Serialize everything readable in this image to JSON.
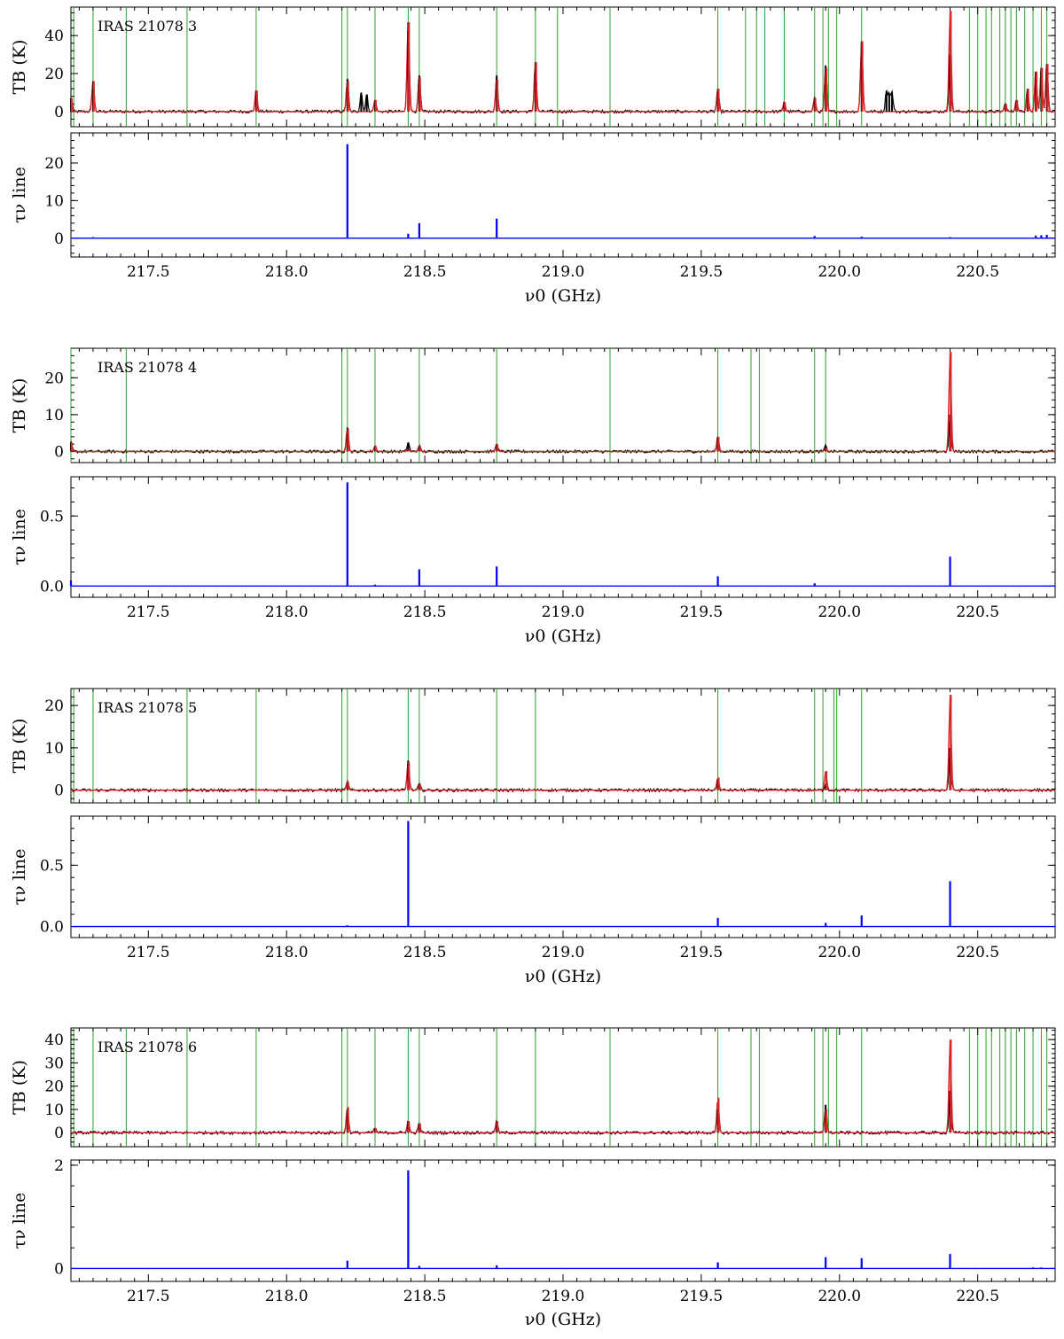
{
  "chart_data": [
    {
      "type": "line",
      "source_label": "IRAS 21078 3",
      "xlabel": "ν0 (GHz)",
      "xlim": [
        217.22,
        220.78
      ],
      "x_ticks": [
        217.5,
        218.0,
        218.5,
        219.0,
        219.5,
        220.0,
        220.5
      ],
      "x_tick_labels": [
        "217.5",
        "218.0",
        "218.5",
        "219.0",
        "219.5",
        "220.0",
        "220.5"
      ],
      "top": {
        "ylabel": "TB (K)",
        "ylim": [
          -8,
          55
        ],
        "y_ticks": [
          0,
          20,
          40
        ],
        "y_tick_labels": [
          "0",
          "20",
          "40"
        ],
        "line_markers_ghz": [
          217.23,
          217.3,
          217.42,
          217.64,
          217.89,
          218.2,
          218.22,
          218.32,
          218.44,
          218.48,
          218.76,
          218.9,
          218.98,
          219.17,
          219.56,
          219.66,
          219.7,
          219.73,
          219.8,
          219.91,
          219.94,
          219.96,
          219.99,
          220.08,
          220.4,
          220.47,
          220.5,
          220.53,
          220.55,
          220.58,
          220.6,
          220.62,
          220.64,
          220.67,
          220.7,
          220.73,
          220.75
        ],
        "peaks": [
          {
            "x": 217.22,
            "data": 7,
            "model": 7
          },
          {
            "x": 217.3,
            "data": 16,
            "model": 16
          },
          {
            "x": 217.89,
            "data": 11,
            "model": 11
          },
          {
            "x": 218.22,
            "data": 17,
            "model": 16
          },
          {
            "x": 218.27,
            "data": 10,
            "model": 0
          },
          {
            "x": 218.29,
            "data": 9,
            "model": 0
          },
          {
            "x": 218.32,
            "data": 6,
            "model": 6
          },
          {
            "x": 218.44,
            "data": 47,
            "model": 47
          },
          {
            "x": 218.48,
            "data": 19,
            "model": 18
          },
          {
            "x": 218.76,
            "data": 19,
            "model": 17
          },
          {
            "x": 218.9,
            "data": 26,
            "model": 26
          },
          {
            "x": 219.56,
            "data": 12,
            "model": 12
          },
          {
            "x": 219.8,
            "data": 5,
            "model": 5
          },
          {
            "x": 219.91,
            "data": 7,
            "model": 7
          },
          {
            "x": 219.95,
            "data": 24,
            "model": 23
          },
          {
            "x": 220.08,
            "data": 37,
            "model": 37
          },
          {
            "x": 220.17,
            "data": 11,
            "model": 0
          },
          {
            "x": 220.18,
            "data": 9,
            "model": 0
          },
          {
            "x": 220.19,
            "data": 10,
            "model": 0
          },
          {
            "x": 220.4,
            "data": 30,
            "model": 53
          },
          {
            "x": 220.6,
            "data": 4,
            "model": 4
          },
          {
            "x": 220.64,
            "data": 6,
            "model": 6
          },
          {
            "x": 220.68,
            "data": 12,
            "model": 12
          },
          {
            "x": 220.71,
            "data": 21,
            "model": 21
          },
          {
            "x": 220.73,
            "data": 23,
            "model": 23
          },
          {
            "x": 220.75,
            "data": 25,
            "model": 25
          }
        ]
      },
      "bottom": {
        "ylabel": "τν line",
        "ylim": [
          -5,
          28
        ],
        "y_ticks": [
          0,
          10,
          20
        ],
        "y_tick_labels": [
          "0",
          "10",
          "20"
        ],
        "peaks": [
          {
            "x": 217.3,
            "value": 0.3
          },
          {
            "x": 218.22,
            "value": 25
          },
          {
            "x": 218.44,
            "value": 1.2
          },
          {
            "x": 218.48,
            "value": 4
          },
          {
            "x": 218.76,
            "value": 5.2
          },
          {
            "x": 219.91,
            "value": 0.6
          },
          {
            "x": 220.08,
            "value": 0.4
          },
          {
            "x": 220.4,
            "value": 0.3
          },
          {
            "x": 220.71,
            "value": 0.7
          },
          {
            "x": 220.73,
            "value": 0.8
          },
          {
            "x": 220.75,
            "value": 0.9
          }
        ]
      }
    },
    {
      "type": "line",
      "source_label": "IRAS 21078 4",
      "xlabel": "ν0 (GHz)",
      "xlim": [
        217.22,
        220.78
      ],
      "x_ticks": [
        217.5,
        218.0,
        218.5,
        219.0,
        219.5,
        220.0,
        220.5
      ],
      "x_tick_labels": [
        "217.5",
        "218.0",
        "218.5",
        "219.0",
        "219.5",
        "220.0",
        "220.5"
      ],
      "top": {
        "ylabel": "TB (K)",
        "ylim": [
          -3,
          28
        ],
        "y_ticks": [
          0,
          10,
          20
        ],
        "y_tick_labels": [
          "0",
          "10",
          "20"
        ],
        "line_markers_ghz": [
          217.22,
          217.42,
          218.2,
          218.22,
          218.32,
          218.48,
          218.76,
          219.17,
          219.56,
          219.68,
          219.71,
          219.91,
          219.95
        ],
        "peaks": [
          {
            "x": 217.22,
            "data": 2.5,
            "model": 2.5
          },
          {
            "x": 218.22,
            "data": 6.5,
            "model": 6.2
          },
          {
            "x": 218.32,
            "data": 1.5,
            "model": 1.5
          },
          {
            "x": 218.44,
            "data": 2.5,
            "model": 0.5
          },
          {
            "x": 218.48,
            "data": 1.5,
            "model": 1.5
          },
          {
            "x": 218.76,
            "data": 2,
            "model": 2
          },
          {
            "x": 219.56,
            "data": 4,
            "model": 4
          },
          {
            "x": 219.95,
            "data": 1.5,
            "model": 1
          },
          {
            "x": 220.4,
            "data": 10,
            "model": 27
          }
        ]
      },
      "bottom": {
        "ylabel": "τν line",
        "ylim": [
          -0.08,
          0.78
        ],
        "y_ticks": [
          0.0,
          0.5
        ],
        "y_tick_labels": [
          "0.0",
          "0.5"
        ],
        "peaks": [
          {
            "x": 217.22,
            "value": 0.04
          },
          {
            "x": 218.22,
            "value": 0.74
          },
          {
            "x": 218.32,
            "value": 0.01
          },
          {
            "x": 218.48,
            "value": 0.12
          },
          {
            "x": 218.76,
            "value": 0.14
          },
          {
            "x": 219.56,
            "value": 0.07
          },
          {
            "x": 219.91,
            "value": 0.02
          },
          {
            "x": 220.4,
            "value": 0.21
          }
        ]
      }
    },
    {
      "type": "line",
      "source_label": "IRAS 21078 5",
      "xlabel": "ν0 (GHz)",
      "xlim": [
        217.22,
        220.78
      ],
      "x_ticks": [
        217.5,
        218.0,
        218.5,
        219.0,
        219.5,
        220.0,
        220.5
      ],
      "x_tick_labels": [
        "217.5",
        "218.0",
        "218.5",
        "219.0",
        "219.5",
        "220.0",
        "220.5"
      ],
      "top": {
        "ylabel": "TB (K)",
        "ylim": [
          -3,
          24
        ],
        "y_ticks": [
          0,
          10,
          20
        ],
        "y_tick_labels": [
          "0",
          "10",
          "20"
        ],
        "line_markers_ghz": [
          217.23,
          217.3,
          217.64,
          217.89,
          218.2,
          218.22,
          218.44,
          218.48,
          218.76,
          218.9,
          219.56,
          219.91,
          219.94,
          219.98,
          219.99,
          220.08
        ],
        "peaks": [
          {
            "x": 218.22,
            "data": 2,
            "model": 2
          },
          {
            "x": 218.44,
            "data": 7,
            "model": 6.5
          },
          {
            "x": 218.48,
            "data": 1.5,
            "model": 1.5
          },
          {
            "x": 219.56,
            "data": 2.5,
            "model": 3
          },
          {
            "x": 219.95,
            "data": 1.5,
            "model": 4.5
          },
          {
            "x": 220.4,
            "data": 10,
            "model": 22.5
          }
        ]
      },
      "bottom": {
        "ylabel": "τν line",
        "ylim": [
          -0.09,
          0.9
        ],
        "y_ticks": [
          0.0,
          0.5
        ],
        "y_tick_labels": [
          "0.0",
          "0.5"
        ],
        "peaks": [
          {
            "x": 218.22,
            "value": 0.01
          },
          {
            "x": 218.44,
            "value": 0.86
          },
          {
            "x": 219.56,
            "value": 0.07
          },
          {
            "x": 219.95,
            "value": 0.03
          },
          {
            "x": 220.08,
            "value": 0.09
          },
          {
            "x": 220.4,
            "value": 0.37
          }
        ]
      }
    },
    {
      "type": "line",
      "source_label": "IRAS 21078 6",
      "xlabel": "ν0 (GHz)",
      "xlim": [
        217.22,
        220.78
      ],
      "x_ticks": [
        217.5,
        218.0,
        218.5,
        219.0,
        219.5,
        220.0,
        220.5
      ],
      "x_tick_labels": [
        "217.5",
        "218.0",
        "218.5",
        "219.0",
        "219.5",
        "220.0",
        "220.5"
      ],
      "top": {
        "ylabel": "TB (K)",
        "ylim": [
          -6,
          45
        ],
        "y_ticks": [
          0,
          10,
          20,
          30,
          40
        ],
        "y_tick_labels": [
          "0",
          "10",
          "20",
          "30",
          "40"
        ],
        "line_markers_ghz": [
          217.23,
          217.3,
          217.42,
          217.64,
          217.89,
          218.2,
          218.22,
          218.32,
          218.44,
          218.48,
          218.76,
          218.9,
          219.17,
          219.56,
          219.68,
          219.71,
          219.91,
          219.94,
          219.96,
          219.99,
          220.08,
          220.47,
          220.5,
          220.53,
          220.55,
          220.58,
          220.6,
          220.62,
          220.64,
          220.67,
          220.7,
          220.73,
          220.75
        ],
        "peaks": [
          {
            "x": 218.22,
            "data": 10,
            "model": 11
          },
          {
            "x": 218.32,
            "data": 2,
            "model": 2
          },
          {
            "x": 218.44,
            "data": 5,
            "model": 5
          },
          {
            "x": 218.48,
            "data": 4,
            "model": 4
          },
          {
            "x": 218.76,
            "data": 5,
            "model": 5
          },
          {
            "x": 219.56,
            "data": 10,
            "model": 15
          },
          {
            "x": 219.95,
            "data": 12,
            "model": 10
          },
          {
            "x": 220.4,
            "data": 18,
            "model": 40
          }
        ]
      },
      "bottom": {
        "ylabel": "τν line",
        "ylim": [
          -0.25,
          2.1
        ],
        "y_ticks": [
          0,
          2
        ],
        "y_tick_labels": [
          "0",
          "2"
        ],
        "peaks": [
          {
            "x": 218.22,
            "value": 0.15
          },
          {
            "x": 218.44,
            "value": 1.9
          },
          {
            "x": 218.48,
            "value": 0.05
          },
          {
            "x": 218.76,
            "value": 0.06
          },
          {
            "x": 219.56,
            "value": 0.12
          },
          {
            "x": 219.95,
            "value": 0.22
          },
          {
            "x": 220.08,
            "value": 0.2
          },
          {
            "x": 220.4,
            "value": 0.28
          },
          {
            "x": 220.7,
            "value": 0.02
          },
          {
            "x": 220.73,
            "value": 0.02
          }
        ]
      }
    }
  ],
  "colors": {
    "observed_spectrum": "#000000",
    "model_spectrum": "#d62728",
    "line_markers": "#2ca02c",
    "optical_depth": "#0000ff"
  }
}
